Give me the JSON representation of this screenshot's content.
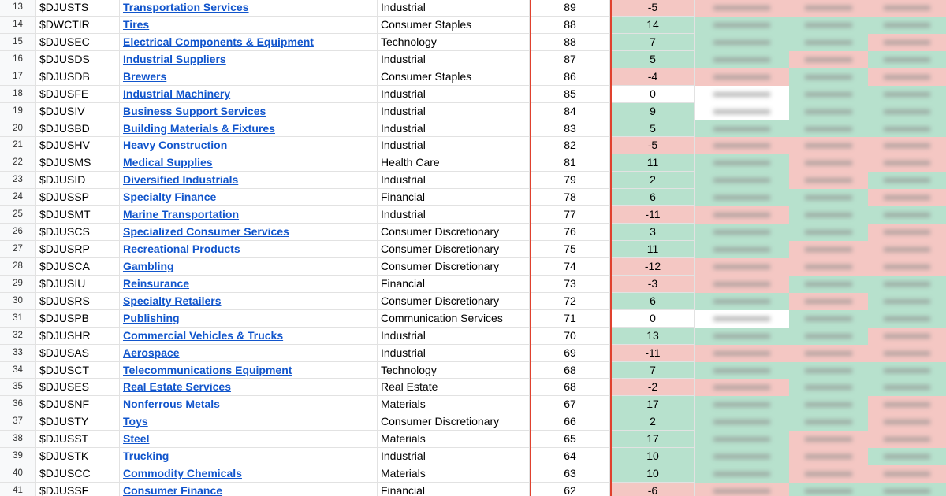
{
  "table": {
    "rows": [
      [
        "13",
        "$DJUSTS",
        "Transportation Services",
        "Industrial",
        "89",
        "-5"
      ],
      [
        "14",
        "$DWCTIR",
        "Tires",
        "Consumer Staples",
        "88",
        "14"
      ],
      [
        "15",
        "$DJUSEC",
        "Electrical Components & Equipment",
        "Technology",
        "88",
        "7"
      ],
      [
        "16",
        "$DJUSDS",
        "Industrial Suppliers",
        "Industrial",
        "87",
        "5"
      ],
      [
        "17",
        "$DJUSDB",
        "Brewers",
        "Consumer Staples",
        "86",
        "-4"
      ],
      [
        "18",
        "$DJUSFE",
        "Industrial Machinery",
        "Industrial",
        "85",
        "0"
      ],
      [
        "19",
        "$DJUSIV",
        "Business Support Services",
        "Industrial",
        "84",
        "9"
      ],
      [
        "20",
        "$DJUSBD",
        "Building Materials & Fixtures",
        "Industrial",
        "83",
        "5"
      ],
      [
        "21",
        "$DJUSHV",
        "Heavy Construction",
        "Industrial",
        "82",
        "-5"
      ],
      [
        "22",
        "$DJUSMS",
        "Medical Supplies",
        "Health Care",
        "81",
        "11"
      ],
      [
        "23",
        "$DJUSID",
        "Diversified Industrials",
        "Industrial",
        "79",
        "2"
      ],
      [
        "24",
        "$DJUSSP",
        "Specialty Finance",
        "Financial",
        "78",
        "6"
      ],
      [
        "25",
        "$DJUSMT",
        "Marine Transportation",
        "Industrial",
        "77",
        "-11"
      ],
      [
        "26",
        "$DJUSCS",
        "Specialized Consumer Services",
        "Consumer Discretionary",
        "76",
        "3"
      ],
      [
        "27",
        "$DJUSRP",
        "Recreational Products",
        "Consumer Discretionary",
        "75",
        "11"
      ],
      [
        "28",
        "$DJUSCA",
        "Gambling",
        "Consumer Discretionary",
        "74",
        "-12"
      ],
      [
        "29",
        "$DJUSIU",
        "Reinsurance",
        "Financial",
        "73",
        "-3"
      ],
      [
        "30",
        "$DJUSRS",
        "Specialty Retailers",
        "Consumer Discretionary",
        "72",
        "6"
      ],
      [
        "31",
        "$DJUSPB",
        "Publishing",
        "Communication Services",
        "71",
        "0"
      ],
      [
        "32",
        "$DJUSHR",
        "Commercial Vehicles & Trucks",
        "Industrial",
        "70",
        "13"
      ],
      [
        "33",
        "$DJUSAS",
        "Aerospace",
        "Industrial",
        "69",
        "-11"
      ],
      [
        "34",
        "$DJUSCT",
        "Telecommunications Equipment",
        "Technology",
        "68",
        "7"
      ],
      [
        "35",
        "$DJUSES",
        "Real Estate Services",
        "Real Estate",
        "68",
        "-2"
      ],
      [
        "36",
        "$DJUSNF",
        "Nonferrous Metals",
        "Materials",
        "67",
        "17"
      ],
      [
        "37",
        "$DJUSTY",
        "Toys",
        "Consumer Discretionary",
        "66",
        "2"
      ],
      [
        "38",
        "$DJUSST",
        "Steel",
        "Materials",
        "65",
        "17"
      ],
      [
        "39",
        "$DJUSTK",
        "Trucking",
        "Industrial",
        "64",
        "10"
      ],
      [
        "40",
        "$DJUSCC",
        "Commodity Chemicals",
        "Materials",
        "63",
        "10"
      ],
      [
        "41",
        "$DJUSSF",
        "Consumer Finance",
        "Financial",
        "62",
        "-6"
      ]
    ]
  }
}
